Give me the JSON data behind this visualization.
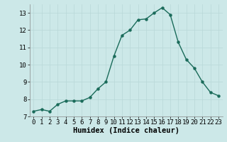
{
  "x": [
    0,
    1,
    2,
    3,
    4,
    5,
    6,
    7,
    8,
    9,
    10,
    11,
    12,
    13,
    14,
    15,
    16,
    17,
    18,
    19,
    20,
    21,
    22,
    23
  ],
  "y": [
    7.3,
    7.4,
    7.3,
    7.7,
    7.9,
    7.9,
    7.9,
    8.1,
    8.6,
    9.0,
    10.5,
    11.7,
    12.0,
    12.6,
    12.65,
    13.0,
    13.3,
    12.9,
    11.3,
    10.3,
    9.8,
    9.0,
    8.4,
    8.2
  ],
  "xlabel": "Humidex (Indice chaleur)",
  "ylim": [
    7,
    13.5
  ],
  "xlim": [
    -0.5,
    23.5
  ],
  "yticks": [
    7,
    8,
    9,
    10,
    11,
    12,
    13
  ],
  "xticks": [
    0,
    1,
    2,
    3,
    4,
    5,
    6,
    7,
    8,
    9,
    10,
    11,
    12,
    13,
    14,
    15,
    16,
    17,
    18,
    19,
    20,
    21,
    22,
    23
  ],
  "line_color": "#1a6b5a",
  "marker_color": "#1a6b5a",
  "bg_color": "#cce8e8",
  "grid_color": "#b8d8d8",
  "tick_fontsize": 6.5,
  "xlabel_fontsize": 7.5,
  "linewidth": 1.0,
  "markersize": 2.2
}
